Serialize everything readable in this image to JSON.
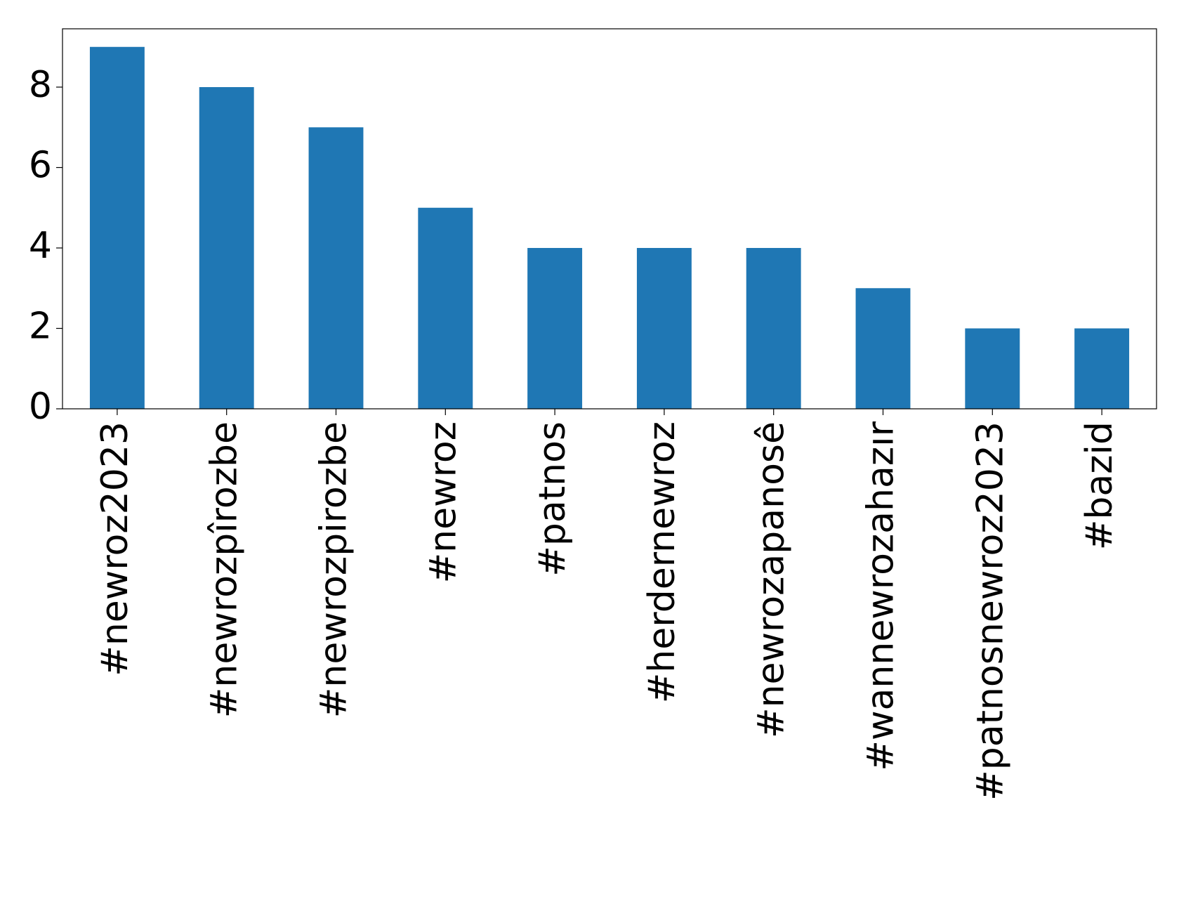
{
  "chart_data": {
    "type": "bar",
    "categories": [
      "#newroz2023",
      "#newrozpîrozbe",
      "#newrozpirozbe",
      "#newroz",
      "#patnos",
      "#herdernewroz",
      "#newrozapanosê",
      "#wannewrozahazır",
      "#patnosnewroz2023",
      "#bazid"
    ],
    "values": [
      9,
      8,
      7,
      5,
      4,
      4,
      4,
      3,
      2,
      2
    ],
    "color": "#1f77b4",
    "ylim": [
      0,
      9.45
    ],
    "yticks": [
      0,
      2,
      4,
      6,
      8
    ],
    "grid": false
  }
}
